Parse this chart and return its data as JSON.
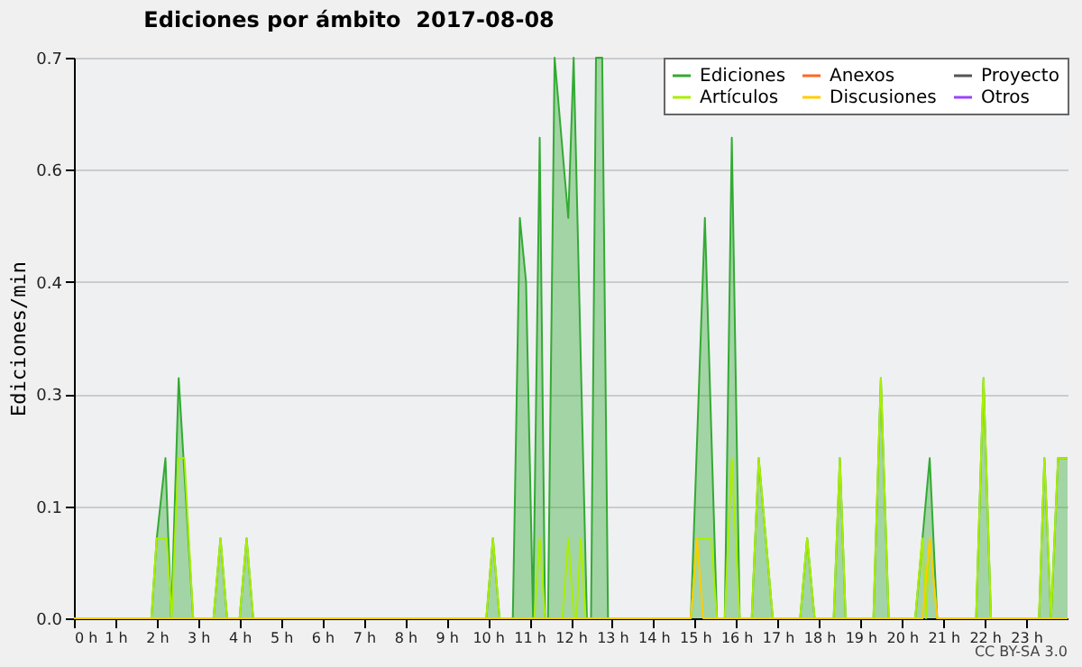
{
  "chart_data": {
    "type": "line",
    "title": "Ediciones por ámbito  2017-08-08",
    "ylabel": "Ediciones/min",
    "annotations": [
      "CC BY-SA 3.0"
    ],
    "xlim": [
      0,
      24
    ],
    "xticks": [
      {
        "value": 0,
        "label": "0 h"
      },
      {
        "value": 1,
        "label": "1 h"
      },
      {
        "value": 2,
        "label": "2 h"
      },
      {
        "value": 3,
        "label": "3 h"
      },
      {
        "value": 4,
        "label": "4 h"
      },
      {
        "value": 5,
        "label": "5 h"
      },
      {
        "value": 6,
        "label": "6 h"
      },
      {
        "value": 7,
        "label": "7 h"
      },
      {
        "value": 8,
        "label": "8 h"
      },
      {
        "value": 9,
        "label": "9 h"
      },
      {
        "value": 10,
        "label": "10 h"
      },
      {
        "value": 11,
        "label": "11 h"
      },
      {
        "value": 12,
        "label": "12 h"
      },
      {
        "value": 13,
        "label": "13 h"
      },
      {
        "value": 14,
        "label": "14 h"
      },
      {
        "value": 15,
        "label": "15 h"
      },
      {
        "value": 16,
        "label": "16 h"
      },
      {
        "value": 17,
        "label": "17 h"
      },
      {
        "value": 18,
        "label": "18 h"
      },
      {
        "value": 19,
        "label": "19 h"
      },
      {
        "value": 20,
        "label": "20 h"
      },
      {
        "value": 21,
        "label": "21 h"
      },
      {
        "value": 22,
        "label": "22 h"
      },
      {
        "value": 23,
        "label": "23 h"
      }
    ],
    "ylim": [
      0,
      0.7
    ],
    "yticks": [
      {
        "value": 0,
        "label": "0.0"
      },
      {
        "value": 0.14,
        "label": "0.1"
      },
      {
        "value": 0.28,
        "label": "0.3"
      },
      {
        "value": 0.42,
        "label": "0.4"
      },
      {
        "value": 0.56,
        "label": "0.6"
      },
      {
        "value": 0.7,
        "label": "0.7"
      }
    ],
    "grid": "y",
    "legend": "top right",
    "line_style": "solid",
    "series": [
      {
        "name": "Ediciones",
        "type": "area",
        "color": "#33aa33",
        "x": [
          0,
          1.87,
          2.0,
          2.21,
          2.35,
          2.53,
          2.88,
          3.37,
          3.54,
          3.7,
          4.0,
          4.17,
          4.33,
          9.96,
          10.12,
          10.28,
          10.6,
          10.77,
          10.92,
          11.09,
          11.25,
          11.38,
          11.45,
          11.61,
          11.94,
          12.07,
          12.39,
          12.49,
          12.61,
          12.76,
          12.9,
          14.9,
          15.24,
          15.53,
          15.72,
          15.89,
          16.08,
          16.37,
          16.54,
          16.88,
          17.54,
          17.71,
          17.89,
          18.35,
          18.5,
          18.64,
          19.31,
          19.49,
          19.68,
          20.32,
          20.67,
          20.85,
          21.79,
          21.97,
          22.15,
          23.31,
          23.44,
          23.6,
          23.77,
          24
        ],
        "values": [
          0,
          0,
          0.1,
          0.2,
          0,
          0.3,
          0,
          0,
          0.1,
          0,
          0,
          0.1,
          0,
          0,
          0.1,
          0,
          0,
          0.5,
          0.42,
          0,
          0.6,
          0,
          0,
          0.7,
          0.5,
          0.7,
          0,
          0,
          0.7,
          0.7,
          0,
          0,
          0.5,
          0,
          0,
          0.6,
          0,
          0,
          0.2,
          0,
          0,
          0.1,
          0,
          0,
          0.2,
          0,
          0,
          0.3,
          0,
          0,
          0.2,
          0,
          0,
          0.3,
          0,
          0,
          0.2,
          0,
          0.2,
          0.2
        ]
      },
      {
        "name": "Artículos",
        "color": "#aaee00",
        "x": [
          0,
          1.87,
          2.0,
          2.24,
          2.36,
          2.52,
          2.67,
          2.88,
          3.37,
          3.54,
          3.7,
          4.0,
          4.17,
          4.33,
          9.96,
          10.12,
          10.28,
          11.12,
          11.25,
          11.38,
          11.8,
          11.94,
          12.08,
          12.14,
          12.24,
          12.36,
          14.9,
          15.06,
          15.39,
          15.53,
          15.72,
          15.89,
          16.08,
          16.37,
          16.54,
          16.88,
          17.54,
          17.71,
          17.89,
          18.35,
          18.5,
          18.64,
          19.31,
          19.49,
          19.68,
          20.32,
          20.49,
          20.58,
          20.67,
          20.85,
          21.79,
          21.97,
          22.15,
          23.31,
          23.44,
          23.6,
          23.77,
          24
        ],
        "values": [
          0,
          0,
          0.1,
          0.1,
          0,
          0.2,
          0.2,
          0,
          0,
          0.1,
          0,
          0,
          0.1,
          0,
          0,
          0.1,
          0,
          0,
          0.1,
          0,
          0,
          0.1,
          0,
          0,
          0.1,
          0,
          0,
          0.1,
          0.1,
          0,
          0,
          0.2,
          0,
          0,
          0.2,
          0,
          0,
          0.1,
          0,
          0,
          0.2,
          0,
          0,
          0.3,
          0,
          0,
          0.1,
          0,
          0.1,
          0,
          0,
          0.3,
          0,
          0,
          0.2,
          0,
          0.2,
          0.2
        ]
      },
      {
        "name": "Anexos",
        "color": "#ff6622"
      },
      {
        "name": "Discusiones",
        "color": "#ffcc00",
        "x": [
          0,
          14.9,
          15.05,
          15.2,
          20.5,
          20.67,
          20.85,
          24
        ],
        "values": [
          0,
          0,
          0.1,
          0,
          0,
          0.1,
          0,
          0
        ]
      },
      {
        "name": "Proyecto",
        "color": "#555555"
      },
      {
        "name": "Otros",
        "color": "#9944ff"
      }
    ]
  }
}
